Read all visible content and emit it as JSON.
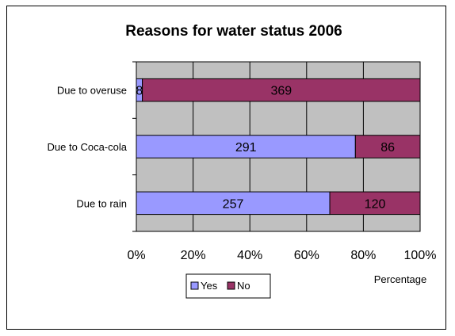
{
  "chart_data": {
    "type": "bar",
    "orientation": "horizontal",
    "stacked": "percent",
    "title": "Reasons for water status 2006",
    "xlabel": "Percentage",
    "ylabel": "",
    "categories": [
      "Due to overuse",
      "Due to Coca-cola",
      "Due to rain"
    ],
    "series": [
      {
        "name": "Yes",
        "values": [
          8,
          291,
          257
        ],
        "color": "#9999ff"
      },
      {
        "name": "No",
        "values": [
          369,
          86,
          120
        ],
        "color": "#993366"
      }
    ],
    "x_ticks": [
      "0%",
      "20%",
      "40%",
      "60%",
      "80%",
      "100%"
    ],
    "xlim": [
      0,
      100
    ],
    "grid": true,
    "plot_background": "#c0c0c0",
    "legend_position": "bottom"
  }
}
